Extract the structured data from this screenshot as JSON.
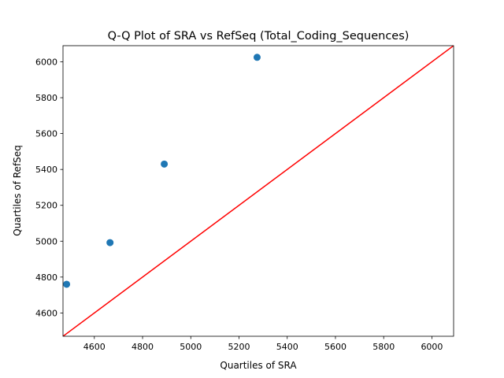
{
  "chart_data": {
    "type": "scatter",
    "title": "Q-Q Plot of SRA vs RefSeq (Total_Coding_Sequences)",
    "xlabel": "Quartiles of SRA",
    "ylabel": "Quartiles of RefSeq",
    "xlim": [
      4470,
      6090
    ],
    "ylim": [
      4470,
      6090
    ],
    "xticks": [
      4600,
      4800,
      5000,
      5200,
      5400,
      5600,
      5800,
      6000
    ],
    "yticks": [
      4600,
      4800,
      5000,
      5200,
      5400,
      5600,
      5800,
      6000
    ],
    "grid": false,
    "points": [
      {
        "x": 4485,
        "y": 4760
      },
      {
        "x": 4665,
        "y": 4992
      },
      {
        "x": 4890,
        "y": 5430
      },
      {
        "x": 5275,
        "y": 6025
      }
    ],
    "reference_line": {
      "from": [
        4470,
        4470
      ],
      "to": [
        6090,
        6090
      ],
      "color": "#ff0000"
    },
    "marker_color": "#1f77b4"
  }
}
